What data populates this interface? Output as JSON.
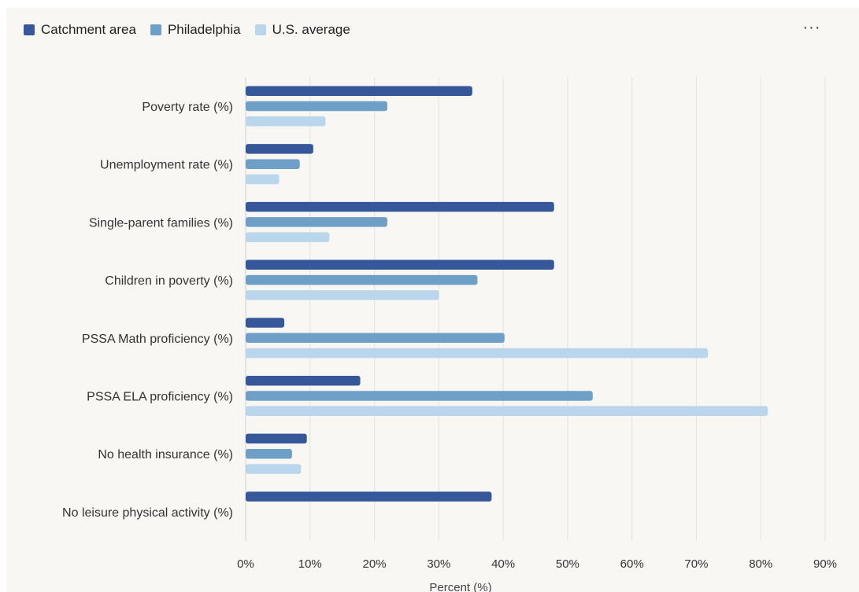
{
  "chart_data": {
    "type": "bar",
    "orientation": "horizontal",
    "categories": [
      "Poverty rate (%)",
      "Unemployment rate (%)",
      "Single-parent families (%)",
      "Children in poverty (%)",
      "PSSA Math proficiency (%)",
      "PSSA ELA proficiency (%)",
      "No health insurance (%)",
      "No leisure physical activity (%)"
    ],
    "series": [
      {
        "name": "Catchment area",
        "color": "#36589b",
        "values": [
          35.2,
          10.5,
          47.9,
          47.9,
          6.0,
          17.8,
          9.5,
          38.2
        ]
      },
      {
        "name": "Philadelphia",
        "color": "#6ea0c7",
        "values": [
          22.0,
          8.4,
          22.0,
          36.0,
          40.2,
          53.9,
          7.2,
          null
        ]
      },
      {
        "name": "U.S. average",
        "color": "#b9d6ec",
        "values": [
          12.4,
          5.2,
          13.0,
          30.0,
          71.8,
          81.1,
          8.6,
          null
        ]
      }
    ],
    "xlim": [
      0,
      90
    ],
    "xticks": [
      "0%",
      "10%",
      "20%",
      "30%",
      "40%",
      "50%",
      "60%",
      "70%",
      "80%",
      "90%"
    ],
    "xlabel": "Percent (%)",
    "ylabel": "",
    "grid": "vertical",
    "legend_position": "top-left"
  },
  "menu": {
    "more_label": "···"
  }
}
